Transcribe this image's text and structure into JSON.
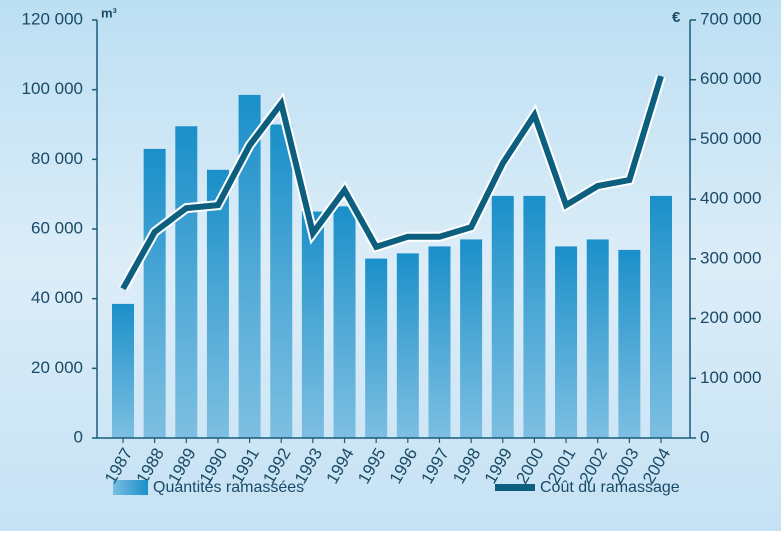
{
  "chart_data": {
    "type": "bar-line",
    "y_unit": "m³",
    "y2_unit": "€",
    "categories": [
      "1987",
      "1988",
      "1989",
      "1990",
      "1991",
      "1992",
      "1993",
      "1994",
      "1995",
      "1996",
      "1997",
      "1998",
      "1999",
      "2000",
      "2001",
      "2002",
      "2003",
      "2004"
    ],
    "series": [
      {
        "name": "Quantités ramassées",
        "type": "bar",
        "color": "#1a8fc9",
        "values": [
          38500,
          83000,
          89500,
          77000,
          98500,
          90000,
          65000,
          66500,
          51500,
          53000,
          55000,
          57000,
          69500,
          69500,
          55000,
          57000,
          54000,
          69500
        ]
      },
      {
        "name": "Coût du ramassage",
        "type": "line",
        "axis": "y2",
        "color": "#0d5f80",
        "values": [
          250000,
          345000,
          385000,
          390000,
          490000,
          560000,
          343000,
          415000,
          320000,
          337000,
          337000,
          353000,
          460000,
          541000,
          390000,
          422000,
          432000,
          606000
        ]
      }
    ],
    "ylim": [
      0,
      120000
    ],
    "yticks": [
      0,
      {
        "value": 20000,
        "label": "20 000"
      },
      {
        "value": 40000,
        "label": "40 000"
      },
      {
        "value": 60000,
        "label": "60 000"
      },
      {
        "value": 80000,
        "label": "80 000"
      },
      {
        "value": 100000,
        "label": "100 000"
      },
      {
        "value": 120000,
        "label": "120 000"
      }
    ],
    "y2lim": [
      0,
      700000
    ],
    "y2ticks": [
      0,
      {
        "value": 100000,
        "label": "100 000"
      },
      {
        "value": 200000,
        "label": "200 000"
      },
      {
        "value": 300000,
        "label": "300 000"
      },
      {
        "value": 400000,
        "label": "400 000"
      },
      {
        "value": 500000,
        "label": "500 000"
      },
      {
        "value": 600000,
        "label": "600 000"
      },
      {
        "value": 700000,
        "label": "700 000"
      }
    ]
  }
}
